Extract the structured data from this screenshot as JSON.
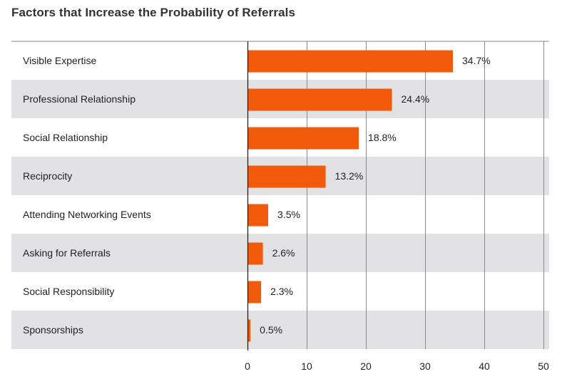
{
  "chart_data": {
    "type": "bar",
    "orientation": "horizontal",
    "title": "Factors that Increase the Probability of Referrals",
    "categories": [
      "Visible Expertise",
      "Professional Relationship",
      "Social Relationship",
      "Reciprocity",
      "Attending Networking Events",
      "Asking for Referrals",
      "Social Responsibility",
      "Sponsorships"
    ],
    "values": [
      34.7,
      24.4,
      18.8,
      13.2,
      3.5,
      2.6,
      2.3,
      0.5
    ],
    "value_labels": [
      "34.7%",
      "24.4%",
      "18.8%",
      "13.2%",
      "3.5%",
      "2.6%",
      "2.3%",
      "0.5%"
    ],
    "xlim": [
      0,
      50
    ],
    "xticks": [
      0,
      10,
      20,
      30,
      40,
      50
    ],
    "xlabel": "",
    "ylabel": "",
    "grid": "vertical",
    "legend": "none",
    "bar_color": "#f05a0a",
    "stripe_color": "#e2e2e4"
  }
}
